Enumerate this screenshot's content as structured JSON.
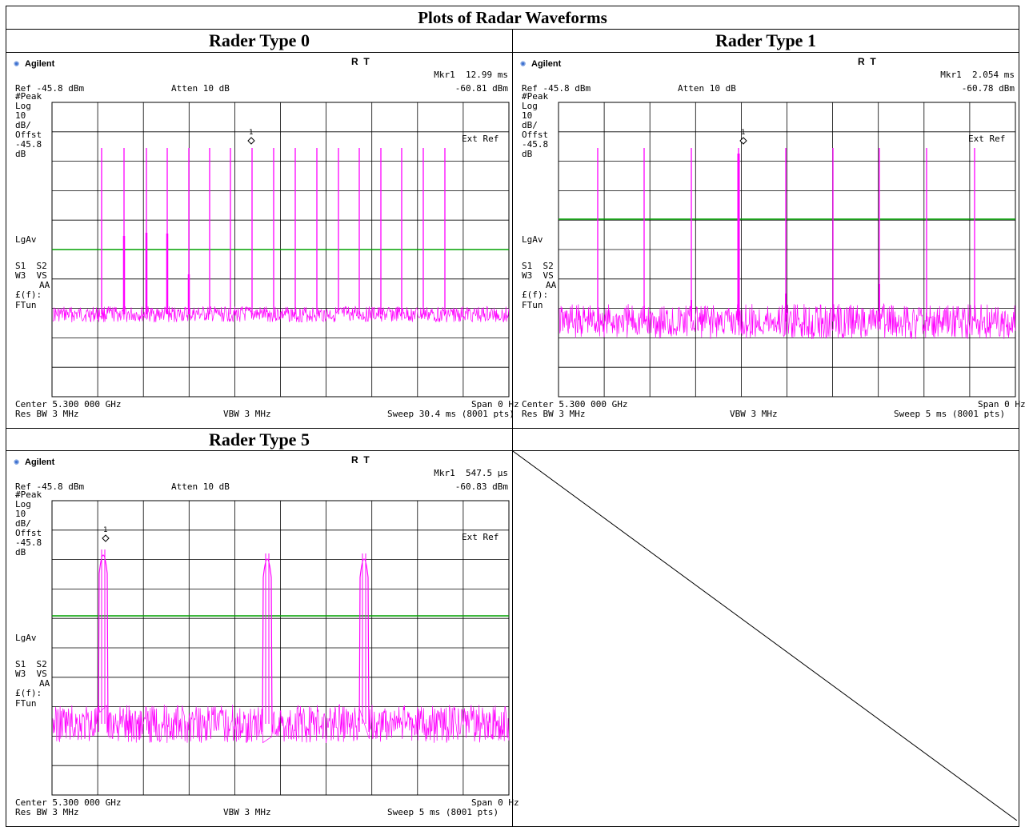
{
  "title": "Plots of Radar Waveforms",
  "plots": [
    {
      "heading": "Rader Type 0",
      "brand": "Agilent",
      "rt": "R  T",
      "marker_label": "Mkr1  12.99 ms",
      "marker_value": "-60.81 dBm",
      "ref": "Ref -45.8 dBm",
      "atten": "Atten 10 dB",
      "left_labels": [
        "#Peak",
        "Log",
        "10",
        "dB/",
        "Offst",
        "-45.8",
        "dB"
      ],
      "lgav": "LgAv",
      "s1s2": "S1  S2",
      "w3vs": "W3  VS",
      "aa": "AA",
      "ff": "£(f):",
      "ftun": "FTun",
      "ext_ref": "Ext Ref",
      "marker_num": "1",
      "center": "Center 5.300 000 GHz",
      "span": "Span 0 Hz",
      "res_bw": "Res BW 3 MHz",
      "vbw": "VBW 3 MHz",
      "sweep": "Sweep 30.4 ms (8001 pts)"
    },
    {
      "heading": "Rader Type 1",
      "brand": "Agilent",
      "rt": "R  T",
      "marker_label": "Mkr1  2.054 ms",
      "marker_value": "-60.78 dBm",
      "ref": "Ref -45.8 dBm",
      "atten": "Atten 10 dB",
      "left_labels": [
        "#Peak",
        "Log",
        "10",
        "dB/",
        "Offst",
        "-45.8",
        "dB"
      ],
      "lgav": "LgAv",
      "s1s2": "S1  S2",
      "w3vs": "W3  VS",
      "aa": "AA",
      "ff": "£(f):",
      "ftun": "FTun",
      "ext_ref": "Ext Ref",
      "marker_num": "1",
      "center": "Center 5.300 000 GHz",
      "span": "Span 0 Hz",
      "res_bw": "Res BW 3 MHz",
      "vbw": "VBW 3 MHz",
      "sweep": "Sweep 5 ms (8001 pts)"
    },
    {
      "heading": "Rader Type 5",
      "brand": "Agilent",
      "rt": "R  T",
      "marker_label": "Mkr1  547.5 µs",
      "marker_value": "-60.83 dBm",
      "ref": "Ref -45.8 dBm",
      "atten": "Atten 10 dB",
      "left_labels": [
        "#Peak",
        "Log",
        "10",
        "dB/",
        "Offst",
        "-45.8",
        "dB"
      ],
      "lgav": "LgAv",
      "s1s2": "S1  S2",
      "w3vs": "W3  VS",
      "aa": "AA",
      "ff": "£(f):",
      "ftun": "FTun",
      "ext_ref": "Ext Ref",
      "marker_num": "1",
      "center": "Center 5.300 000 GHz",
      "span": "Span 0 Hz",
      "res_bw": "Res BW 3 MHz",
      "vbw": "VBW 3 MHz",
      "sweep": "Sweep 5 ms (8001 pts)"
    }
  ],
  "colors": {
    "trace": "#ff00ff",
    "display_line": "#00a000",
    "grid": "#000000",
    "logo": "#3a6fd0"
  }
}
